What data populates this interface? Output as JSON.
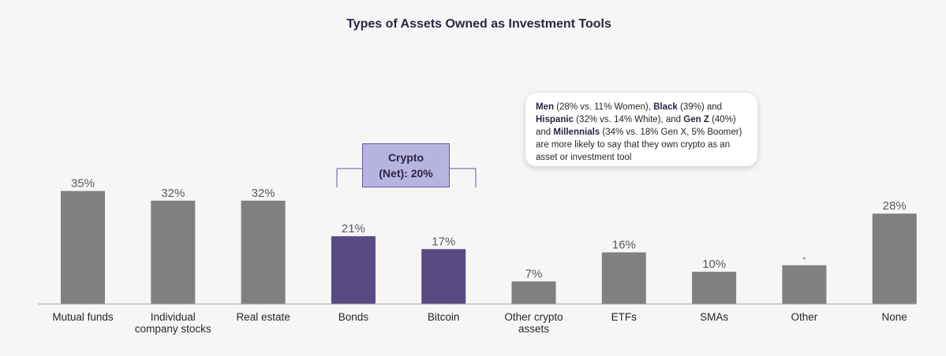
{
  "chart_data": {
    "type": "bar",
    "title": "Types of Assets Owned as Investment Tools",
    "categories": [
      "Mutual funds",
      "Individual company stocks",
      "Real estate",
      "Bonds",
      "Bitcoin",
      "Other crypto assets",
      "ETFs",
      "SMAs",
      "Other",
      "None"
    ],
    "category_lines": [
      [
        "Mutual funds"
      ],
      [
        "Individual",
        "company stocks"
      ],
      [
        "Real estate"
      ],
      [
        "Bonds"
      ],
      [
        "Bitcoin"
      ],
      [
        "Other crypto",
        "assets"
      ],
      [
        "ETFs"
      ],
      [
        "SMAs"
      ],
      [
        "Other"
      ],
      [
        "None"
      ]
    ],
    "values": [
      35,
      32,
      32,
      21,
      17,
      7,
      16,
      10,
      12,
      28
    ],
    "value_labels": [
      "35%",
      "32%",
      "32%",
      "21%",
      "17%",
      "7%",
      "16%",
      "10%",
      "-",
      "28%"
    ],
    "highlighted": [
      false,
      false,
      false,
      true,
      true,
      false,
      false,
      false,
      false,
      false
    ],
    "ylim": [
      0,
      38
    ],
    "colors": {
      "default": "#808080",
      "highlight": "#594b82",
      "axis": "#a6a6a6"
    }
  },
  "bracket": {
    "line1": "Crypto",
    "line2": "(Net): 20%"
  },
  "callout": [
    {
      "text": "Men",
      "bold": true
    },
    {
      "text": " (28% vs. 11% Women), ",
      "bold": false
    },
    {
      "text": "Black",
      "bold": true
    },
    {
      "text": " (39%) and ",
      "bold": false
    },
    {
      "text": "Hispanic",
      "bold": true
    },
    {
      "text": " (32% vs. 14% White), and ",
      "bold": false
    },
    {
      "text": "Gen Z",
      "bold": true
    },
    {
      "text": " (40%) and ",
      "bold": false
    },
    {
      "text": "Millennials",
      "bold": true
    },
    {
      "text": " (34% vs. 18% Gen X, 5% Boomer) are more likely to say that they own crypto as an asset or investment tool",
      "bold": false
    }
  ]
}
